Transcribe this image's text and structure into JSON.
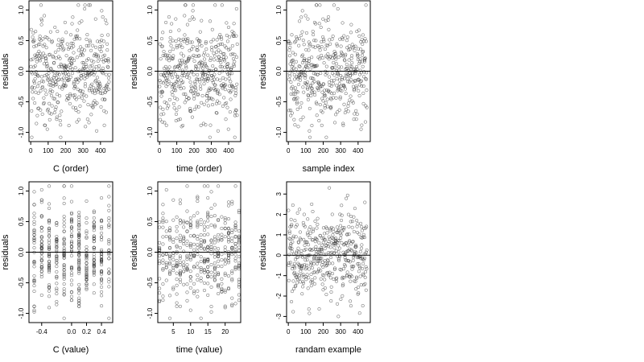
{
  "chart_data": [
    {
      "type": "scatter",
      "xlabel": "C (order)",
      "ylabel": "residuals",
      "xlim": [
        -10,
        470
      ],
      "ylim": [
        -1.15,
        1.15
      ],
      "xticks": [
        0,
        100,
        200,
        300,
        400
      ],
      "xtick_labels": [
        "0",
        "100",
        "200",
        "300",
        "400"
      ],
      "yticks": [
        -1.0,
        -0.5,
        0.0,
        0.5,
        1.0
      ],
      "ytick_labels": [
        "-1.0",
        "-0.5",
        "0.0",
        "0.5",
        "1.0"
      ],
      "hline": 0,
      "n_points": 450,
      "points_x": [],
      "points_y": []
    },
    {
      "type": "scatter",
      "xlabel": "time (order)",
      "ylabel": "residuals",
      "xlim": [
        -10,
        470
      ],
      "ylim": [
        -1.15,
        1.15
      ],
      "xticks": [
        0,
        100,
        200,
        300,
        400
      ],
      "xtick_labels": [
        "0",
        "100",
        "200",
        "300",
        "400"
      ],
      "yticks": [
        -1.0,
        -0.5,
        0.0,
        0.5,
        1.0
      ],
      "ytick_labels": [
        "-1.0",
        "-0.5",
        "0.0",
        "0.5",
        "1.0"
      ],
      "hline": 0,
      "n_points": 450,
      "points_x": [],
      "points_y": []
    },
    {
      "type": "scatter",
      "xlabel": "sample index",
      "ylabel": "residuals",
      "xlim": [
        -10,
        470
      ],
      "ylim": [
        -1.15,
        1.15
      ],
      "xticks": [
        0,
        100,
        200,
        300,
        400
      ],
      "xtick_labels": [
        "0",
        "100",
        "200",
        "300",
        "400"
      ],
      "yticks": [
        -1.0,
        -0.5,
        0.0,
        0.5,
        1.0
      ],
      "ytick_labels": [
        "-1.0",
        "-0.5",
        "0.0",
        "0.5",
        "1.0"
      ],
      "hline": 0,
      "n_points": 450,
      "points_x": [],
      "points_y": []
    },
    {
      "type": "scatter",
      "xlabel": "C (value)",
      "ylabel": "residuals",
      "xlim": [
        -0.57,
        0.55
      ],
      "ylim": [
        -1.15,
        1.15
      ],
      "xticks": [
        -0.4,
        0.0,
        0.2,
        0.4
      ],
      "xtick_labels": [
        "-0.4",
        "0.0",
        "0.2",
        "0.4"
      ],
      "yticks": [
        -1.0,
        -0.5,
        0.0,
        0.5,
        1.0
      ],
      "ytick_labels": [
        "-1.0",
        "-0.5",
        "0.0",
        "0.5",
        "1.0"
      ],
      "hline": 0,
      "n_points": 450,
      "x_levels": [
        -0.5,
        -0.4,
        -0.3,
        -0.2,
        -0.1,
        0.0,
        0.1,
        0.2,
        0.3,
        0.4,
        0.5
      ],
      "points_x": [],
      "points_y": []
    },
    {
      "type": "scatter",
      "xlabel": "time (value)",
      "ylabel": "residuals",
      "xlim": [
        0.5,
        24.5
      ],
      "ylim": [
        -1.15,
        1.15
      ],
      "xticks": [
        5,
        10,
        15,
        20
      ],
      "xtick_labels": [
        "5",
        "10",
        "15",
        "20"
      ],
      "yticks": [
        -1.0,
        -0.5,
        0.0,
        0.5,
        1.0
      ],
      "ytick_labels": [
        "-1.0",
        "-0.5",
        "0.0",
        "0.5",
        "1.0"
      ],
      "hline": 0,
      "n_points": 450,
      "x_levels": [
        1,
        2,
        3,
        4,
        5,
        6,
        7,
        8,
        9,
        10,
        11,
        12,
        13,
        14,
        15,
        16,
        17,
        18,
        19,
        20,
        21,
        22,
        23,
        24
      ],
      "points_x": [],
      "points_y": []
    },
    {
      "type": "scatter",
      "xlabel": "randam example",
      "ylabel": "residuals",
      "xlim": [
        -10,
        470
      ],
      "ylim": [
        -3.3,
        3.6
      ],
      "xticks": [
        0,
        100,
        200,
        300,
        400
      ],
      "xtick_labels": [
        "0",
        "100",
        "200",
        "300",
        "400"
      ],
      "yticks": [
        -3,
        -2,
        -1,
        0,
        1,
        2,
        3
      ],
      "ytick_labels": [
        "-3",
        "-2",
        "-1",
        "0",
        "1",
        "2",
        "3"
      ],
      "hline": 0,
      "n_points": 450,
      "points_x": [],
      "points_y": []
    }
  ]
}
